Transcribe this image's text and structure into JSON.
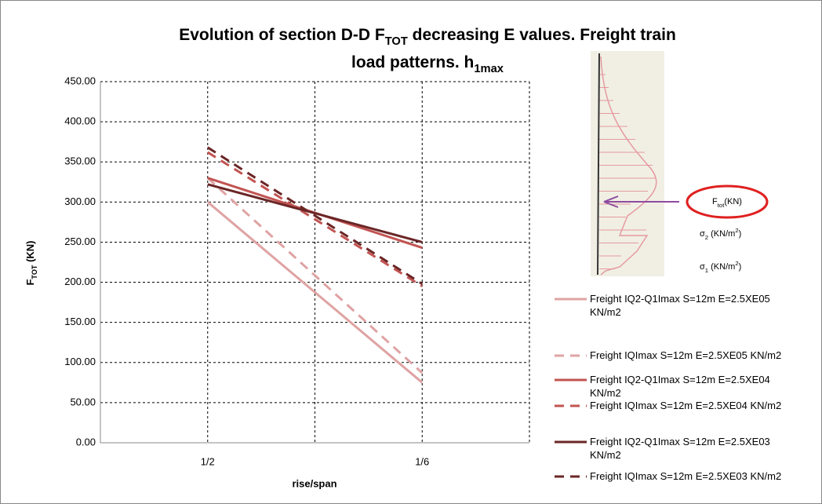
{
  "chart_data": {
    "type": "line",
    "title": [
      [
        {
          "text": "Evolution of section D-D F"
        },
        {
          "text": "TOT",
          "sub": true
        },
        {
          "text": " decreasing E values. Freight train"
        }
      ],
      [
        {
          "text": "load patterns. h"
        },
        {
          "text": "1max",
          "sub": true
        }
      ]
    ],
    "ylabel": [
      {
        "text": "F"
      },
      {
        "text": "TOT",
        "sub": true
      },
      {
        "text": " (KN)"
      }
    ],
    "xlabel": "rise/span",
    "x": [
      1,
      3
    ],
    "xlim": [
      0,
      4
    ],
    "xticks": [
      {
        "value": 1,
        "label": "1/2"
      },
      {
        "value": 3,
        "label": "1/6"
      }
    ],
    "xgrid": [
      0,
      1,
      2,
      3,
      4
    ],
    "ylim": [
      0,
      450
    ],
    "yticks": [
      {
        "value": 0,
        "label": "0.00"
      },
      {
        "value": 50,
        "label": "50.00"
      },
      {
        "value": 100,
        "label": "100.00"
      },
      {
        "value": 150,
        "label": "150.00"
      },
      {
        "value": 200,
        "label": "200.00"
      },
      {
        "value": 250,
        "label": "250.00"
      },
      {
        "value": 300,
        "label": "300.00"
      },
      {
        "value": 350,
        "label": "350.00"
      },
      {
        "value": 400,
        "label": "400.00"
      },
      {
        "value": 450,
        "label": "450.00"
      }
    ],
    "grid": true,
    "legend": "right",
    "series": [
      {
        "name": "Freight IQ2-Q1Imax S=12m E=2.5XE05 KN/m2",
        "color": "#dfa3a3",
        "dash": false,
        "values": [
          300,
          75
        ]
      },
      {
        "name": "Freight IQImax S=12m E=2.5XE05 KN/m2",
        "color": "#dfa3a3",
        "dash": true,
        "values": [
          330,
          87
        ]
      },
      {
        "name": "Freight IQ2-Q1Imax S=12m E=2.5XE04 KN/m2",
        "color": "#c25452",
        "dash": false,
        "values": [
          330,
          243
        ]
      },
      {
        "name": "Freight IQImax S=12m E=2.5XE04 KN/m2",
        "color": "#c25452",
        "dash": true,
        "values": [
          362,
          195
        ]
      },
      {
        "name": "Freight IQ2-Q1Imax S=12m E=2.5XE03 KN/m2",
        "color": "#6b2626",
        "dash": false,
        "values": [
          322,
          250
        ]
      },
      {
        "name": "Freight IQImax S=12m E=2.5XE03 KN/m2",
        "color": "#6b2626",
        "dash": true,
        "values": [
          368,
          198
        ]
      }
    ],
    "inset": {
      "force": [
        {
          "text": "F"
        },
        {
          "text": "tot",
          "sub": true
        },
        {
          "text": "(KN)"
        }
      ],
      "sigma2": [
        {
          "text": "σ"
        },
        {
          "text": "2",
          "sub": true
        },
        {
          "text": " (KN/m"
        },
        {
          "text": "2",
          "sup": true
        },
        {
          "text": ")"
        }
      ],
      "sigma1": [
        {
          "text": "σ"
        },
        {
          "text": "1",
          "sub": true
        },
        {
          "text": " (KN/m"
        },
        {
          "text": "2",
          "sup": true
        },
        {
          "text": ")"
        }
      ]
    }
  }
}
